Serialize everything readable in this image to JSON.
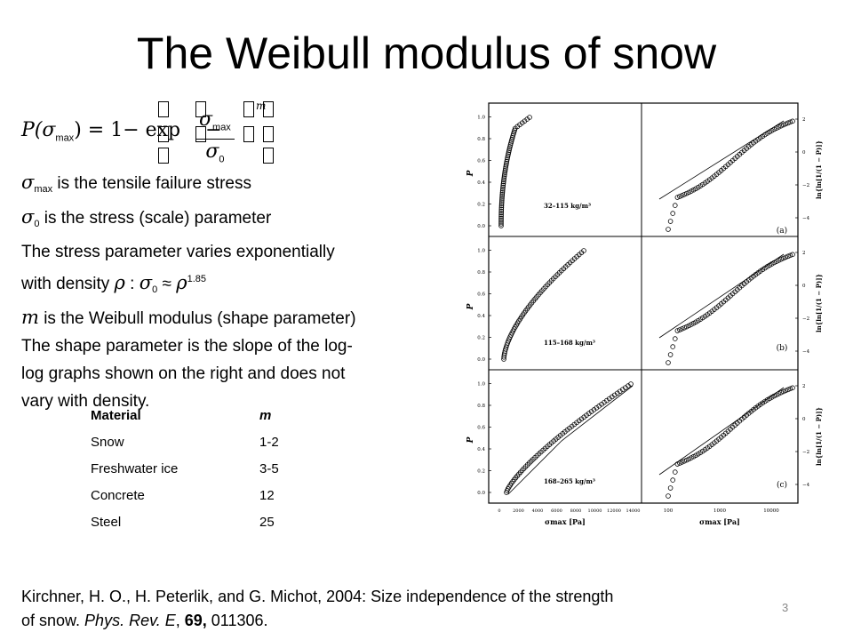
{
  "slide": {
    "title": "The Weibull modulus of snow",
    "page_number": "3"
  },
  "formula": {
    "lhs": "P(σ",
    "lhs_sub": "max",
    "rhs_start": ") = 1− exp",
    "minus": "−",
    "num": "σ",
    "num_sub": "max",
    "den": "σ",
    "den_sub": "0",
    "exponent": "m"
  },
  "bullets": {
    "line1_sym": "σ",
    "line1_sub": "max",
    "line1_text": " is the tensile failure stress",
    "line2_sym": "σ",
    "line2_sub": "0",
    "line2_text": " is the stress (scale) parameter",
    "line3": "The stress parameter varies exponentially",
    "line4_text": "with density ",
    "line4_rho": "ρ",
    "line4_colon": " : ",
    "line4_sigma": "σ",
    "line4_sigma_sub": "0",
    "line4_approx": " ≈  ",
    "line4_rho2": "ρ",
    "line4_exp": "1.85",
    "line5_m": "m",
    "line5_text": " is the Weibull modulus (shape parameter)",
    "line6": "The shape parameter is the slope of the log-",
    "line7": "log graphs shown on the right and does not",
    "line8": "vary with density."
  },
  "material_table": {
    "headers": [
      "Material",
      "m"
    ],
    "rows": [
      [
        "Snow",
        "1-2"
      ],
      [
        "Freshwater ice",
        "3-5"
      ],
      [
        "Concrete",
        "12"
      ],
      [
        "Steel",
        "25"
      ]
    ]
  },
  "citation": {
    "part1": "Kirchner, H. O., H. Peterlik, and G. Michot, 2004: Size independence of the strength",
    "part2": "of snow. ",
    "journal": "Phys. Rev. E",
    "comma": ", ",
    "volume": "69,",
    "rest": " 011306."
  },
  "figure": {
    "y_left_label": "P",
    "y_right_label": "ln{ln[1/(1 − P)]}",
    "x_left_label": "σmax [Pa]",
    "x_right_label": "σmax [Pa]",
    "left_yticks": [
      "0.0",
      "0.2",
      "0.4",
      "0.6",
      "0.8",
      "1.0"
    ],
    "right_yticks": [
      "2",
      "0",
      "−2",
      "−4"
    ],
    "left_xticks": [
      "0",
      "2000",
      "4000",
      "6000",
      "8000",
      "10000",
      "12000",
      "14000"
    ],
    "right_xticks": [
      "100",
      "1000",
      "10000"
    ],
    "panels": [
      {
        "density": "32–115 kg/m³",
        "tag": "(a)"
      },
      {
        "density": "115–168 kg/m³",
        "tag": "(b)"
      },
      {
        "density": "168–265 kg/m³",
        "tag": "(c)"
      }
    ]
  }
}
